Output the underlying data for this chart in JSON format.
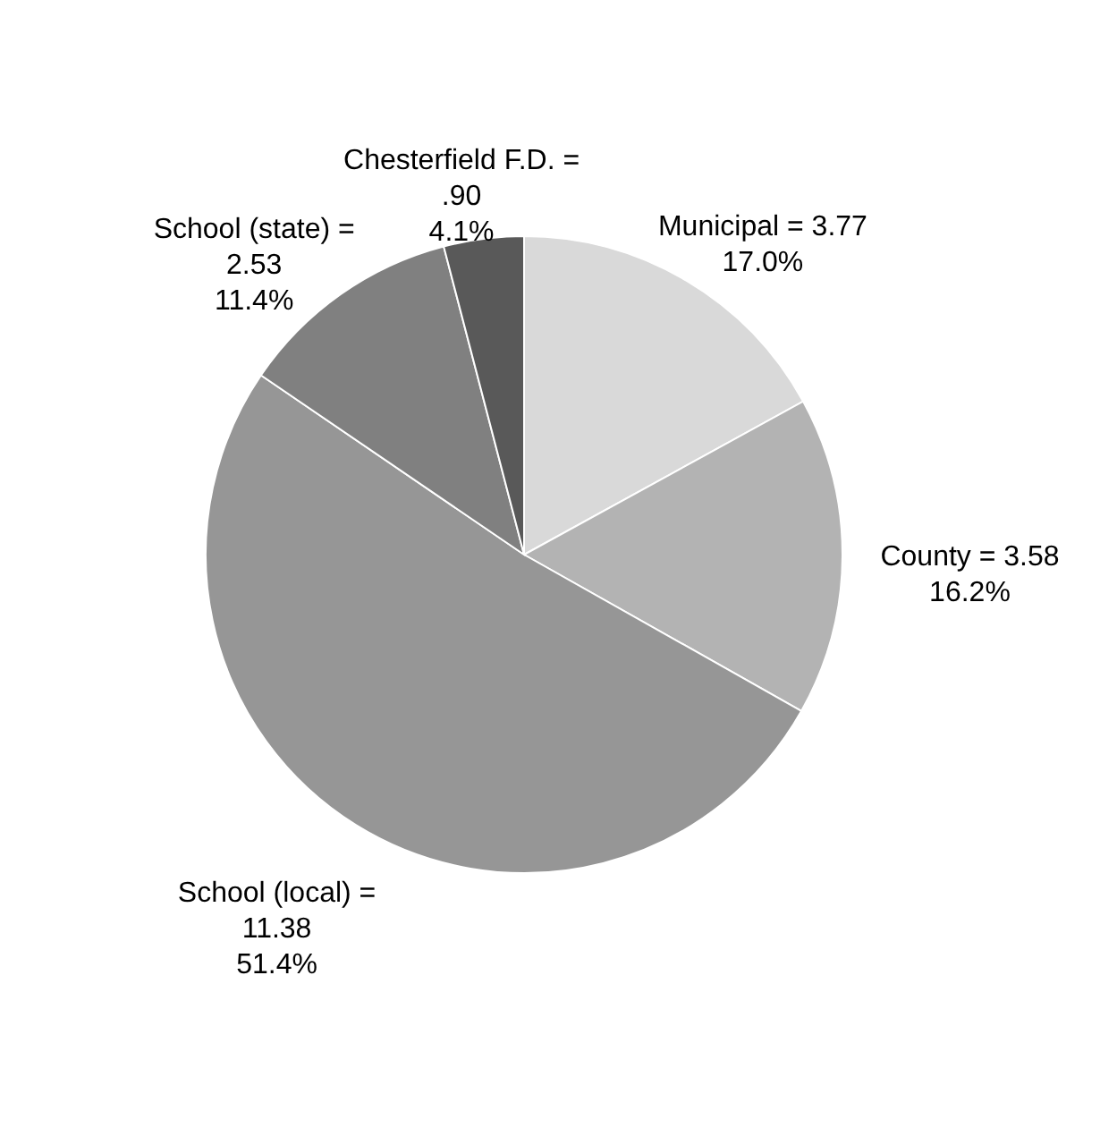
{
  "chart_data": {
    "type": "pie",
    "categories": [
      "Municipal =",
      "County =",
      "School (local) =",
      "School (state) =",
      "Chesterfield F.D. ="
    ],
    "values": [
      3.77,
      3.58,
      11.38,
      2.53,
      0.9
    ],
    "colors": [
      "#d9d9d9",
      "#b3b3b3",
      "#969696",
      "#808080",
      "#595959"
    ],
    "value_labels": [
      "3.77\n17.0%",
      "3.58\n16.2%",
      "11.38\n51.4%",
      "2.53\n11.4%",
      ".90\n4.1%"
    ]
  }
}
